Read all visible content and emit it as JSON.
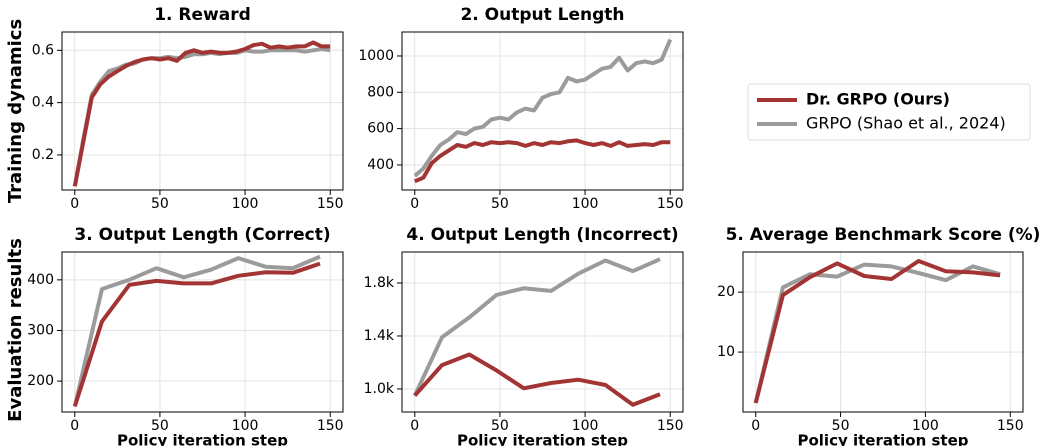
{
  "row_labels": [
    "Training dynamics",
    "Evaluation results"
  ],
  "chart_data": [
    {
      "type": "line",
      "title": "1. Reward",
      "x": [
        0,
        5,
        10,
        15,
        20,
        25,
        30,
        35,
        40,
        45,
        50,
        55,
        60,
        65,
        70,
        75,
        80,
        85,
        90,
        95,
        100,
        105,
        110,
        115,
        120,
        125,
        130,
        135,
        140,
        145,
        150
      ],
      "series": [
        {
          "name": "Dr. GRPO (Ours)",
          "color": "#a23434",
          "values": [
            0.08,
            0.25,
            0.42,
            0.47,
            0.5,
            0.52,
            0.54,
            0.555,
            0.565,
            0.57,
            0.565,
            0.57,
            0.56,
            0.59,
            0.6,
            0.59,
            0.595,
            0.59,
            0.59,
            0.595,
            0.605,
            0.62,
            0.625,
            0.61,
            0.615,
            0.61,
            0.615,
            0.615,
            0.63,
            0.615,
            0.615
          ]
        },
        {
          "name": "GRPO (Shao et al., 2024)",
          "color": "#9b9b9b",
          "values": [
            0.08,
            0.26,
            0.43,
            0.48,
            0.52,
            0.53,
            0.545,
            0.55,
            0.565,
            0.57,
            0.57,
            0.575,
            0.57,
            0.575,
            0.585,
            0.585,
            0.59,
            0.585,
            0.59,
            0.59,
            0.6,
            0.595,
            0.595,
            0.6,
            0.6,
            0.6,
            0.6,
            0.595,
            0.6,
            0.605,
            0.6
          ]
        }
      ],
      "xlim": [
        -7.5,
        157.5
      ],
      "xticks": [
        0,
        50,
        100,
        150
      ],
      "ylim": [
        0.066,
        0.67
      ],
      "yticks": [
        0.2,
        0.4,
        0.6
      ],
      "grid": true
    },
    {
      "type": "line",
      "title": "2. Output Length",
      "x": [
        0,
        5,
        10,
        15,
        20,
        25,
        30,
        35,
        40,
        45,
        50,
        55,
        60,
        65,
        70,
        75,
        80,
        85,
        90,
        95,
        100,
        105,
        110,
        115,
        120,
        125,
        130,
        135,
        140,
        145,
        150
      ],
      "series": [
        {
          "name": "Dr. GRPO (Ours)",
          "color": "#a23434",
          "values": [
            310,
            330,
            410,
            450,
            480,
            510,
            500,
            520,
            510,
            525,
            520,
            525,
            520,
            505,
            520,
            510,
            525,
            520,
            530,
            535,
            520,
            510,
            520,
            505,
            525,
            505,
            510,
            515,
            510,
            525,
            525
          ]
        },
        {
          "name": "GRPO (Shao et al., 2024)",
          "color": "#9b9b9b",
          "values": [
            340,
            380,
            450,
            510,
            540,
            580,
            570,
            600,
            610,
            650,
            660,
            650,
            690,
            710,
            700,
            770,
            790,
            800,
            880,
            860,
            870,
            900,
            930,
            940,
            990,
            920,
            960,
            970,
            960,
            980,
            1090
          ]
        }
      ],
      "xlim": [
        -7.5,
        157.5
      ],
      "xticks": [
        0,
        50,
        100,
        150
      ],
      "ylim": [
        262,
        1132
      ],
      "yticks": [
        400,
        600,
        800,
        1000
      ],
      "grid": true
    },
    {
      "type": "line",
      "title": "3. Output Length (Correct)",
      "xlabel": "Policy iteration step",
      "x": [
        0,
        16,
        32,
        48,
        64,
        80,
        96,
        112,
        128,
        144
      ],
      "series": [
        {
          "name": "Dr. GRPO (Ours)",
          "color": "#a23434",
          "values": [
            150,
            318,
            390,
            398,
            393,
            393,
            408,
            415,
            414,
            432
          ]
        },
        {
          "name": "GRPO (Shao et al., 2024)",
          "color": "#9b9b9b",
          "values": [
            150,
            382,
            400,
            423,
            405,
            420,
            443,
            426,
            423,
            446
          ]
        }
      ],
      "xlim": [
        -7.5,
        157.5
      ],
      "xticks": [
        0,
        50,
        100,
        150
      ],
      "ylim": [
        139,
        455
      ],
      "yticks": [
        200,
        300,
        400
      ],
      "grid": true
    },
    {
      "type": "line",
      "title": "4. Output Length (Incorrect)",
      "xlabel": "Policy iteration step",
      "x": [
        0,
        16,
        32,
        48,
        64,
        80,
        96,
        112,
        128,
        144
      ],
      "series": [
        {
          "name": "Dr. GRPO (Ours)",
          "color": "#a23434",
          "values": [
            950,
            1180,
            1260,
            1140,
            1005,
            1045,
            1070,
            1030,
            880,
            960
          ]
        },
        {
          "name": "GRPO (Shao et al., 2024)",
          "color": "#9b9b9b",
          "values": [
            950,
            1390,
            1540,
            1710,
            1760,
            1740,
            1870,
            1970,
            1890,
            1980
          ]
        }
      ],
      "xlim": [
        -7.5,
        157.5
      ],
      "xticks": [
        0,
        50,
        100,
        150
      ],
      "ylim": [
        826,
        2034
      ],
      "yticks": [
        {
          "value": 1000,
          "label": "1.0k"
        },
        {
          "value": 1400,
          "label": "1.4k"
        },
        {
          "value": 1800,
          "label": "1.8k"
        }
      ],
      "grid": true
    },
    {
      "type": "line",
      "title": "5. Average Benchmark Score (%)",
      "xlabel": "Policy iteration step",
      "x": [
        0,
        16,
        32,
        48,
        64,
        80,
        96,
        112,
        128,
        144
      ],
      "series": [
        {
          "name": "Dr. GRPO (Ours)",
          "color": "#a23434",
          "values": [
            1.5,
            19.5,
            22.5,
            24.8,
            22.7,
            22.2,
            25.2,
            23.5,
            23.3,
            22.8
          ]
        },
        {
          "name": "GRPO (Shao et al., 2024)",
          "color": "#9b9b9b",
          "values": [
            1.5,
            20.8,
            23,
            22.6,
            24.6,
            24.3,
            23.2,
            22,
            24.3,
            23
          ]
        }
      ],
      "xlim": [
        -7.5,
        157.5
      ],
      "xticks": [
        0,
        50,
        100,
        150
      ],
      "ylim": [
        0,
        26.7
      ],
      "yticks": [
        10,
        20
      ],
      "grid": true
    }
  ]
}
